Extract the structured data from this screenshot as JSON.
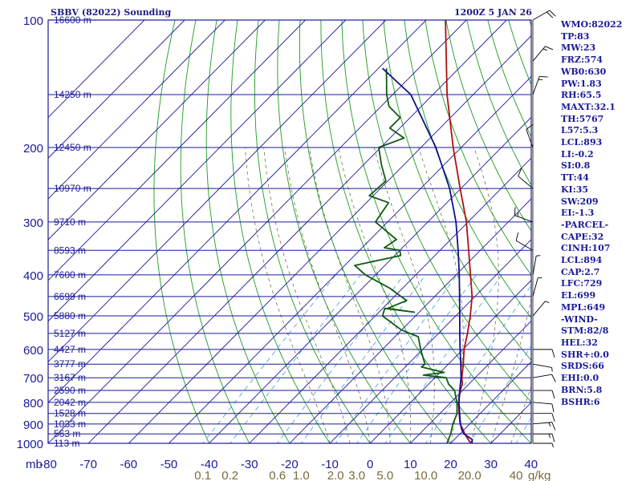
{
  "header": {
    "left": "SBBV (82022) Sounding",
    "right": "1200Z  5 JAN 26"
  },
  "indices": [
    "WMO:82022",
    "TP:83",
    "MW:23",
    "FRZ:574",
    "WB0:630",
    "PW:1.83",
    "RH:65.5",
    "MAXT:32.1",
    "TH:5767",
    "L57:5.3",
    "LCL:893",
    "LI:-0.2",
    "SI:0.8",
    "TT:44",
    "KI:35",
    "SW:209",
    "EI:-1.3",
    "-PARCEL-",
    "CAPE:32",
    "CINH:107",
    "LCL:894",
    "CAP:2.7",
    "LFC:729",
    "EL:699",
    "MPL:649",
    "-WIND-",
    "STM:82/8",
    "HEL:32",
    "SHR+:0.0",
    "SRDS:66",
    "EHI:0.0",
    "BRN:5.8",
    "BSHR:6"
  ],
  "colors": {
    "frame": "#1a1a9a",
    "grid": "#1a1a9a",
    "dry_adiabat": "#1c9c1c",
    "mixing_ratio": "#3d9cd8",
    "moist_adiabat": "#6a5a3a",
    "temperature": "#b01010",
    "dewpoint": "#0f5a0f",
    "parcel": "#10108a",
    "mr_labels": "#7a6a3a",
    "wind_barbs": "#000000"
  },
  "chart_data": {
    "type": "line",
    "title": "SBBV (82022) Sounding",
    "xlabel": "",
    "ylabel": "",
    "xlim": [
      -80,
      40
    ],
    "ylim_hpa": [
      1000,
      100
    ],
    "y_scale": "log",
    "skew": "skew-T",
    "pressure_ticks": [
      "100",
      "200",
      "300",
      "400",
      "500",
      "600",
      "700",
      "800",
      "900",
      "1000"
    ],
    "pressure_minor": [
      150,
      250,
      350,
      450,
      550,
      650,
      750,
      850,
      950
    ],
    "temp_ticks": [
      "-80",
      "-70",
      "-60",
      "-50",
      "-40",
      "-30",
      "-20",
      "-10",
      "0",
      "10",
      "20",
      "30",
      "40"
    ],
    "x_axis_unit": "mb",
    "height_labels": [
      {
        "p": 100,
        "text": "16600 m"
      },
      {
        "p": 150,
        "text": "14250 m"
      },
      {
        "p": 200,
        "text": "12450 m"
      },
      {
        "p": 250,
        "text": "10970 m"
      },
      {
        "p": 300,
        "text": "9710 m"
      },
      {
        "p": 350,
        "text": "8593 m"
      },
      {
        "p": 400,
        "text": "7600 m"
      },
      {
        "p": 450,
        "text": "6699 m"
      },
      {
        "p": 500,
        "text": "5880 m"
      },
      {
        "p": 550,
        "text": "5127 m"
      },
      {
        "p": 600,
        "text": "4427 m"
      },
      {
        "p": 650,
        "text": "3777 m"
      },
      {
        "p": 700,
        "text": "3167 m"
      },
      {
        "p": 750,
        "text": "2590 m"
      },
      {
        "p": 800,
        "text": "2042 m"
      },
      {
        "p": 850,
        "text": "1528 m"
      },
      {
        "p": 900,
        "text": "1033 m"
      },
      {
        "p": 950,
        "text": "563 m"
      },
      {
        "p": 1000,
        "text": "113 m"
      }
    ],
    "mixing_ratio_labels": [
      {
        "w": 0.1,
        "text": "0.1"
      },
      {
        "w": 0.2,
        "text": "0.2"
      },
      {
        "w": 0.6,
        "text": "0.6"
      },
      {
        "w": 1.0,
        "text": "1.0"
      },
      {
        "w": 2.0,
        "text": "2.0"
      },
      {
        "w": 3.0,
        "text": "3.0"
      },
      {
        "w": 5.0,
        "text": "5.0"
      },
      {
        "w": 10.0,
        "text": "10.0"
      },
      {
        "w": 20.0,
        "text": "20.0"
      },
      {
        "w": 40.0,
        "text": "40"
      }
    ],
    "mixing_ratio_unit": "g/kg",
    "series": [
      {
        "key": "temperature",
        "points": [
          [
            1000,
            25
          ],
          [
            980,
            23.5
          ],
          [
            950,
            21.2
          ],
          [
            925,
            19.5
          ],
          [
            900,
            17.6
          ],
          [
            850,
            14.8
          ],
          [
            800,
            11.9
          ],
          [
            750,
            9.4
          ],
          [
            725,
            8.4
          ],
          [
            700,
            6.7
          ],
          [
            650,
            3.7
          ],
          [
            600,
            0.3
          ],
          [
            550,
            -2.8
          ],
          [
            500,
            -6.4
          ],
          [
            450,
            -10.7
          ],
          [
            400,
            -16.4
          ],
          [
            350,
            -22.9
          ],
          [
            300,
            -30.4
          ],
          [
            250,
            -40.2
          ],
          [
            200,
            -52.0
          ],
          [
            150,
            -66.5
          ],
          [
            100,
            -85.2
          ]
        ]
      },
      {
        "key": "dewpoint",
        "points": [
          [
            1000,
            19.1
          ],
          [
            950,
            17.7
          ],
          [
            900,
            15.8
          ],
          [
            850,
            14.3
          ],
          [
            800,
            11.5
          ],
          [
            750,
            8.0
          ],
          [
            725,
            5.0
          ],
          [
            700,
            2.8
          ],
          [
            690,
            -3.5
          ],
          [
            680,
            1.0
          ],
          [
            660,
            -6.0
          ],
          [
            650,
            -5.8
          ],
          [
            600,
            -10.5
          ],
          [
            560,
            -14.2
          ],
          [
            540,
            -20.0
          ],
          [
            500,
            -28.2
          ],
          [
            480,
            -29.5
          ],
          [
            490,
            -21.2
          ],
          [
            480,
            -28.8
          ],
          [
            460,
            -26.0
          ],
          [
            430,
            -33.2
          ],
          [
            400,
            -42.5
          ],
          [
            380,
            -47.5
          ],
          [
            360,
            -38.5
          ],
          [
            350,
            -40.0
          ],
          [
            345,
            -44.5
          ],
          [
            330,
            -43.5
          ],
          [
            300,
            -53.0
          ],
          [
            270,
            -54.5
          ],
          [
            260,
            -61.0
          ],
          [
            240,
            -60.5
          ],
          [
            220,
            -65.5
          ],
          [
            200,
            -70.5
          ],
          [
            190,
            -66.5
          ],
          [
            180,
            -72.5
          ],
          [
            170,
            -72.5
          ],
          [
            160,
            -78.0
          ],
          [
            150,
            -81.5
          ],
          [
            130,
            -88.0
          ]
        ]
      },
      {
        "key": "parcel",
        "points": [
          [
            1000,
            25.3
          ],
          [
            980,
            24.5
          ],
          [
            950,
            21.0
          ],
          [
            925,
            19.2
          ],
          [
            900,
            17.7
          ],
          [
            850,
            14.9
          ],
          [
            800,
            12.0
          ],
          [
            750,
            9.3
          ],
          [
            700,
            6.5
          ],
          [
            650,
            3.1
          ],
          [
            600,
            -0.7
          ],
          [
            550,
            -4.7
          ],
          [
            500,
            -9.0
          ],
          [
            450,
            -13.8
          ],
          [
            400,
            -19.2
          ],
          [
            350,
            -25.5
          ],
          [
            300,
            -33.0
          ],
          [
            250,
            -42.8
          ],
          [
            200,
            -56.3
          ],
          [
            150,
            -75.5
          ],
          [
            130,
            -89.0
          ]
        ]
      }
    ],
    "winds": [
      {
        "p": 1000,
        "dir": 90,
        "spd": 5
      },
      {
        "p": 950,
        "dir": 90,
        "spd": 15
      },
      {
        "p": 900,
        "dir": 85,
        "spd": 15
      },
      {
        "p": 850,
        "dir": 90,
        "spd": 10
      },
      {
        "p": 800,
        "dir": 95,
        "spd": 10
      },
      {
        "p": 750,
        "dir": 90,
        "spd": 10
      },
      {
        "p": 700,
        "dir": 80,
        "spd": 10
      },
      {
        "p": 650,
        "dir": 100,
        "spd": 5
      },
      {
        "p": 600,
        "dir": 90,
        "spd": 10
      },
      {
        "p": 500,
        "dir": 40,
        "spd": 5
      },
      {
        "p": 450,
        "dir": 15,
        "spd": 5
      },
      {
        "p": 400,
        "dir": 10,
        "spd": 5
      },
      {
        "p": 350,
        "dir": 300,
        "spd": 10
      },
      {
        "p": 300,
        "dir": 290,
        "spd": 15
      },
      {
        "p": 250,
        "dir": 310,
        "spd": 10
      },
      {
        "p": 200,
        "dir": 340,
        "spd": 10
      },
      {
        "p": 150,
        "dir": 20,
        "spd": 15
      },
      {
        "p": 125,
        "dir": 40,
        "spd": 15
      },
      {
        "p": 100,
        "dir": 60,
        "spd": 20
      }
    ]
  }
}
